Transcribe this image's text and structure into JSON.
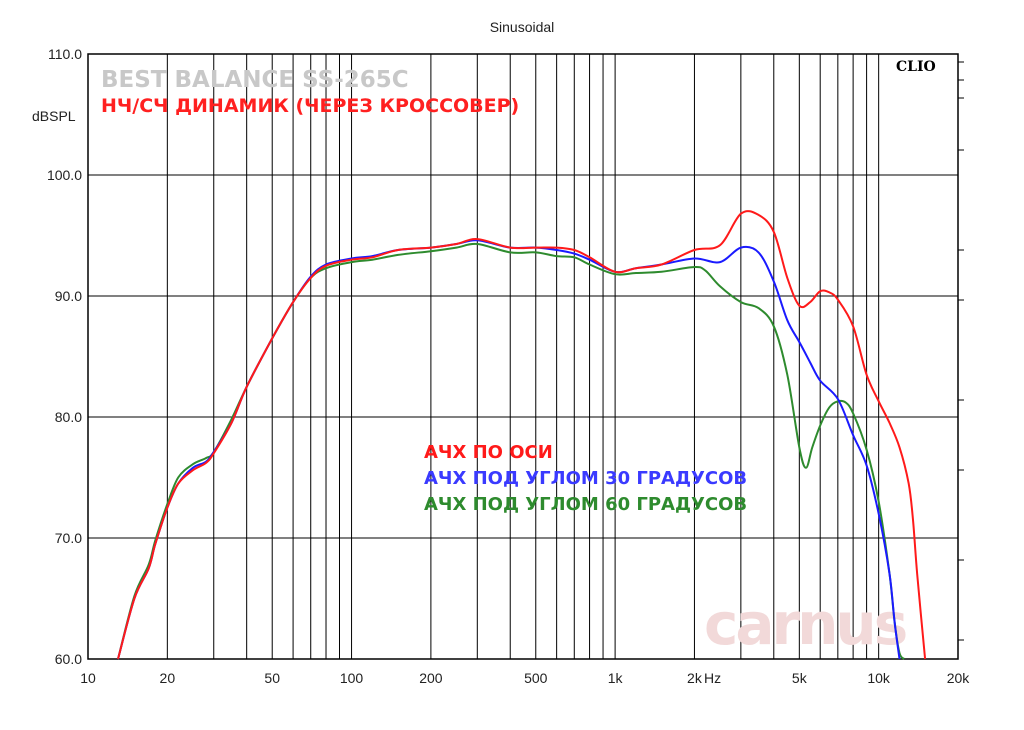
{
  "chart_data": {
    "type": "line",
    "title": "Sinusoidal",
    "overlay_title": "BEST BALANCE SS-265C",
    "overlay_subtitle": "НЧ/СЧ ДИНАМИК (ЧЕРЕЗ КРОССОВЕР)",
    "brand_label": "CLIO",
    "watermark": "carnus",
    "ylabel": "dBSPL",
    "xlabel": "Hz",
    "xscale": "log",
    "xlim": [
      10,
      20000
    ],
    "ylim": [
      60,
      110
    ],
    "grid": true,
    "x_tick_labels": [
      {
        "v": 10,
        "t": "10"
      },
      {
        "v": 20,
        "t": "20"
      },
      {
        "v": 50,
        "t": "50"
      },
      {
        "v": 100,
        "t": "100"
      },
      {
        "v": 200,
        "t": "200"
      },
      {
        "v": 500,
        "t": "500"
      },
      {
        "v": 1000,
        "t": "1k"
      },
      {
        "v": 2000,
        "t": "2k"
      },
      {
        "v": 5000,
        "t": "5k"
      },
      {
        "v": 10000,
        "t": "10k"
      },
      {
        "v": 20000,
        "t": "20k"
      }
    ],
    "y_tick_labels": [
      {
        "v": 110,
        "t": "110.0"
      },
      {
        "v": 100,
        "t": "100.0"
      },
      {
        "v": 90,
        "t": "90.0"
      },
      {
        "v": 80,
        "t": "80.0"
      },
      {
        "v": 70,
        "t": "70.0"
      },
      {
        "v": 60,
        "t": "60.0"
      }
    ],
    "series": [
      {
        "name": "АЧХ ПО ОСИ",
        "color": "#ff1a1a",
        "x": [
          13,
          15,
          17,
          18,
          20,
          22,
          25,
          28,
          30,
          35,
          40,
          50,
          60,
          70,
          80,
          100,
          120,
          150,
          200,
          250,
          300,
          400,
          500,
          600,
          700,
          800,
          1000,
          1200,
          1500,
          2000,
          2500,
          3000,
          3500,
          4000,
          4500,
          5000,
          5500,
          6000,
          6500,
          7000,
          8000,
          9000,
          10000,
          11000,
          12000,
          13000,
          13500,
          14000,
          15000
        ],
        "y": [
          60,
          65,
          67.5,
          69.5,
          72.5,
          74.5,
          75.6,
          76.2,
          77,
          79.5,
          82.5,
          86.5,
          89.5,
          91.5,
          92.5,
          93,
          93.2,
          93.8,
          94,
          94.3,
          94.7,
          94,
          94,
          94,
          93.8,
          93.2,
          92,
          92.3,
          92.6,
          93.8,
          94.2,
          96.8,
          96.7,
          95.3,
          91.5,
          89.2,
          89.5,
          90.4,
          90.3,
          89.7,
          87.5,
          83.5,
          81.3,
          79.5,
          77.5,
          74.5,
          71.5,
          67,
          60
        ]
      },
      {
        "name": "АЧХ ПОД УГЛОМ 30 ГРАДУСОВ",
        "color": "#1a1aff",
        "x": [
          13,
          15,
          17,
          18,
          20,
          22,
          25,
          28,
          30,
          35,
          40,
          50,
          60,
          70,
          80,
          100,
          120,
          150,
          200,
          250,
          300,
          400,
          500,
          600,
          700,
          800,
          1000,
          1200,
          1500,
          2000,
          2500,
          3000,
          3500,
          4000,
          4500,
          5000,
          5500,
          6000,
          7000,
          8000,
          9000,
          10000,
          11000,
          11500,
          12000
        ],
        "y": [
          60,
          65,
          67.5,
          69.5,
          72.5,
          74.5,
          75.8,
          76.3,
          77.1,
          79.5,
          82.5,
          86.5,
          89.5,
          91.6,
          92.6,
          93.1,
          93.3,
          93.8,
          94,
          94.3,
          94.6,
          94,
          94,
          93.8,
          93.5,
          93,
          92,
          92.3,
          92.6,
          93.1,
          92.8,
          94,
          93.6,
          91.2,
          88,
          86.2,
          84.5,
          83,
          81.5,
          78.5,
          76,
          72,
          67,
          63,
          60
        ]
      },
      {
        "name": "АЧХ ПОД УГЛОМ 60 ГРАДУСОВ",
        "color": "#2e8b2e",
        "x": [
          13,
          15,
          17,
          18,
          20,
          22,
          25,
          28,
          30,
          35,
          40,
          50,
          60,
          70,
          80,
          100,
          120,
          150,
          200,
          250,
          300,
          400,
          500,
          600,
          700,
          800,
          1000,
          1200,
          1500,
          2000,
          2200,
          2500,
          3000,
          3500,
          4000,
          4500,
          5000,
          5300,
          5600,
          6000,
          6500,
          7000,
          7500,
          8000,
          9000,
          10000,
          11000,
          11500,
          12000,
          12500
        ],
        "y": [
          60,
          65.2,
          67.8,
          69.8,
          72.8,
          75,
          76.1,
          76.6,
          77.1,
          79.8,
          82.5,
          86.5,
          89.5,
          91.5,
          92.3,
          92.8,
          93,
          93.4,
          93.7,
          94,
          94.3,
          93.6,
          93.6,
          93.3,
          93.2,
          92.6,
          91.8,
          91.9,
          92,
          92.4,
          92.1,
          90.8,
          89.5,
          89,
          87.5,
          83.5,
          77.5,
          75.8,
          77.5,
          79.3,
          80.8,
          81.3,
          81.2,
          80.3,
          77.3,
          73,
          67,
          63,
          60.5,
          60
        ]
      }
    ]
  }
}
